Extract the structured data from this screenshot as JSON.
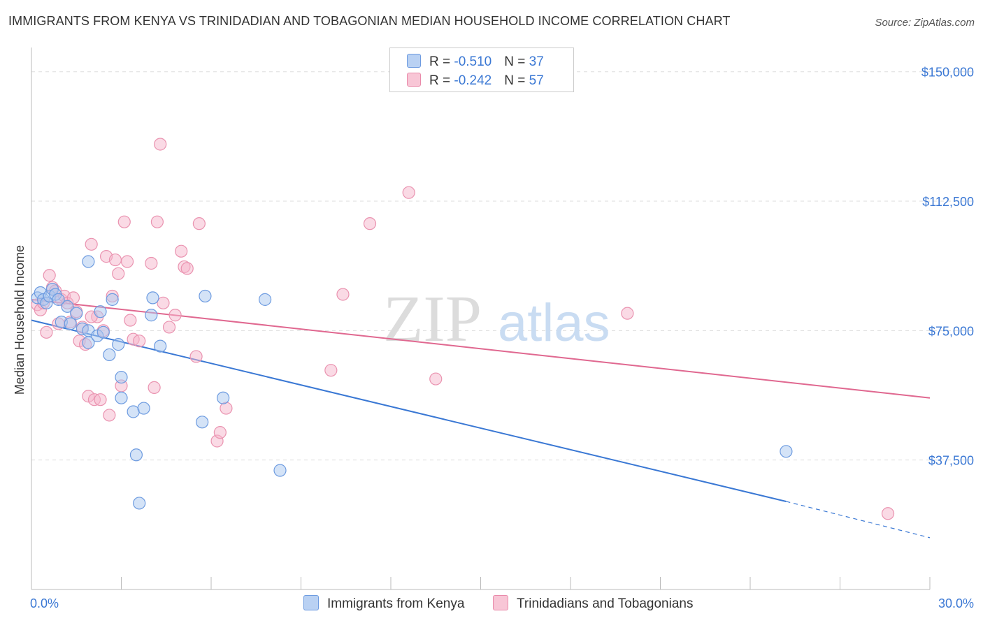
{
  "title": "IMMIGRANTS FROM KENYA VS TRINIDADIAN AND TOBAGONIAN MEDIAN HOUSEHOLD INCOME CORRELATION CHART",
  "source": "Source: ZipAtlas.com",
  "watermark": {
    "zip": "ZIP",
    "atlas": "atlas"
  },
  "colors": {
    "blue": "#3a78d4",
    "blue_fill": "#aac8f0",
    "pink": "#e06890",
    "pink_fill": "#f6b6cb",
    "tick": "#3b78d4"
  },
  "legend": {
    "rows": [
      {
        "r_label": "R = ",
        "r_value": "-0.510",
        "n_label": "N = ",
        "n_value": "37"
      },
      {
        "r_label": "R = ",
        "r_value": "-0.242",
        "n_label": "N = ",
        "n_value": "57"
      }
    ]
  },
  "bottom_legend": {
    "series1": "Immigrants from Kenya",
    "series2": "Trinidadians and Tobagonians"
  },
  "chart_data": {
    "type": "scatter",
    "xlabel": "",
    "ylabel": "Median Household Income",
    "xlim": [
      0,
      30
    ],
    "ylim": [
      0,
      155000
    ],
    "x_tick_labels": [
      "0.0%",
      "30.0%"
    ],
    "y_ticks": [
      37500,
      75000,
      112500,
      150000
    ],
    "y_tick_labels": [
      "$37,500",
      "$75,000",
      "$112,500",
      "$150,000"
    ],
    "grid": true,
    "legend_position": "top-center",
    "series": [
      {
        "name": "Immigrants from Kenya",
        "color": "#3a78d4",
        "r": -0.51,
        "n": 37,
        "trend": {
          "x0": 0,
          "y0": 78000,
          "x1": 25.2,
          "y1": 25500,
          "dashed_to_x": 30,
          "dashed_to_y": 15000
        },
        "points": [
          [
            0.2,
            84500
          ],
          [
            0.3,
            86000
          ],
          [
            0.4,
            84000
          ],
          [
            0.5,
            83000
          ],
          [
            0.6,
            85000
          ],
          [
            0.7,
            87000
          ],
          [
            0.8,
            85500
          ],
          [
            1.0,
            77500
          ],
          [
            1.2,
            82000
          ],
          [
            1.3,
            77000
          ],
          [
            1.5,
            80000
          ],
          [
            1.7,
            75500
          ],
          [
            1.9,
            75000
          ],
          [
            1.9,
            71500
          ],
          [
            2.2,
            73500
          ],
          [
            2.3,
            80500
          ],
          [
            2.4,
            74500
          ],
          [
            2.6,
            68000
          ],
          [
            2.7,
            84000
          ],
          [
            2.9,
            71000
          ],
          [
            3.0,
            55500
          ],
          [
            3.0,
            61500
          ],
          [
            3.4,
            51500
          ],
          [
            3.5,
            39000
          ],
          [
            3.6,
            25000
          ],
          [
            3.75,
            52500
          ],
          [
            4.0,
            79500
          ],
          [
            4.05,
            84500
          ],
          [
            4.3,
            70500
          ],
          [
            5.7,
            48500
          ],
          [
            5.8,
            85000
          ],
          [
            6.4,
            55500
          ],
          [
            7.8,
            84000
          ],
          [
            8.3,
            34500
          ],
          [
            25.2,
            40000
          ],
          [
            1.9,
            95000
          ],
          [
            0.9,
            84000
          ]
        ]
      },
      {
        "name": "Trinidadians and Tobagonians",
        "color": "#e06890",
        "r": -0.242,
        "n": 57,
        "trend": {
          "x0": 0,
          "y0": 84000,
          "x1": 30,
          "y1": 55500
        },
        "points": [
          [
            0.2,
            82500
          ],
          [
            0.3,
            81000
          ],
          [
            0.4,
            83000
          ],
          [
            0.5,
            74500
          ],
          [
            0.6,
            91000
          ],
          [
            0.7,
            87500
          ],
          [
            0.8,
            86500
          ],
          [
            0.9,
            77000
          ],
          [
            1.0,
            84000
          ],
          [
            1.1,
            85000
          ],
          [
            1.2,
            83000
          ],
          [
            1.3,
            77500
          ],
          [
            1.4,
            84500
          ],
          [
            1.5,
            80500
          ],
          [
            1.6,
            72000
          ],
          [
            1.7,
            76000
          ],
          [
            1.8,
            71000
          ],
          [
            1.9,
            56000
          ],
          [
            2.0,
            100000
          ],
          [
            2.1,
            55000
          ],
          [
            2.2,
            79000
          ],
          [
            2.3,
            55000
          ],
          [
            2.4,
            75000
          ],
          [
            2.5,
            96500
          ],
          [
            2.6,
            50500
          ],
          [
            2.7,
            85000
          ],
          [
            2.8,
            95500
          ],
          [
            2.9,
            91500
          ],
          [
            3.0,
            59000
          ],
          [
            3.1,
            106500
          ],
          [
            3.2,
            95000
          ],
          [
            3.3,
            78000
          ],
          [
            3.4,
            72500
          ],
          [
            3.6,
            72000
          ],
          [
            4.0,
            94500
          ],
          [
            4.1,
            58500
          ],
          [
            4.2,
            106500
          ],
          [
            4.3,
            129000
          ],
          [
            4.4,
            83000
          ],
          [
            4.6,
            76000
          ],
          [
            4.8,
            79500
          ],
          [
            5.0,
            98000
          ],
          [
            5.1,
            93500
          ],
          [
            5.2,
            93000
          ],
          [
            5.5,
            67500
          ],
          [
            5.6,
            106000
          ],
          [
            6.2,
            43000
          ],
          [
            6.3,
            45500
          ],
          [
            6.5,
            52500
          ],
          [
            10.0,
            63500
          ],
          [
            10.4,
            85500
          ],
          [
            11.3,
            106000
          ],
          [
            12.6,
            115000
          ],
          [
            13.5,
            61000
          ],
          [
            19.9,
            80000
          ],
          [
            28.6,
            22000
          ],
          [
            2.0,
            79000
          ]
        ]
      }
    ]
  }
}
